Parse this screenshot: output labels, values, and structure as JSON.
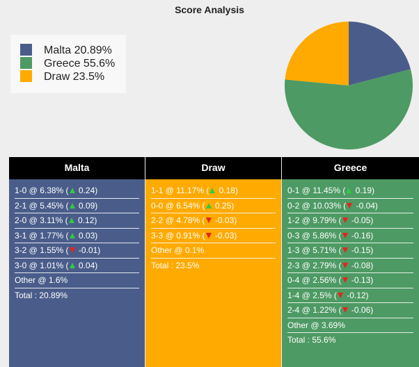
{
  "chart_data": {
    "type": "pie",
    "title": "Score Analysis",
    "legend_placement": "top-left",
    "slices": [
      {
        "label": "Malta 20.89%",
        "value": 20.89,
        "color": "#4a5d8a"
      },
      {
        "label": "Greece 55.6%",
        "value": 55.6,
        "color": "#4e9a64"
      },
      {
        "label": "Draw 23.5%",
        "value": 23.5,
        "color": "#ffaa00"
      }
    ]
  },
  "panels": [
    {
      "header": "Malta",
      "color": "#4a5d8a",
      "rows": [
        {
          "text": "1-0 @ 6.38% (",
          "dir": "up",
          "change": " 0.24)"
        },
        {
          "text": "2-1 @ 5.45% (",
          "dir": "up",
          "change": " 0.09)"
        },
        {
          "text": "2-0 @ 3.11% (",
          "dir": "up",
          "change": " 0.12)"
        },
        {
          "text": "3-1 @ 1.77% (",
          "dir": "up",
          "change": " 0.03)"
        },
        {
          "text": "3-2 @ 1.55% (",
          "dir": "down",
          "change": " -0.01)"
        },
        {
          "text": "3-0 @ 1.01% (",
          "dir": "up",
          "change": " 0.04)"
        },
        {
          "text": "Other @ 1.6%",
          "dir": "",
          "change": ""
        }
      ],
      "total": "Total : 20.89%"
    },
    {
      "header": "Draw",
      "color": "#ffaa00",
      "rows": [
        {
          "text": "1-1 @ 11.17% (",
          "dir": "up",
          "change": " 0.18)"
        },
        {
          "text": "0-0 @ 6.54% (",
          "dir": "up",
          "change": " 0.25)"
        },
        {
          "text": "2-2 @ 4.78% (",
          "dir": "down",
          "change": " -0.03)"
        },
        {
          "text": "3-3 @ 0.91% (",
          "dir": "down",
          "change": " -0.03)"
        },
        {
          "text": "Other @ 0.1%",
          "dir": "",
          "change": ""
        }
      ],
      "total": "Total : 23.5%"
    },
    {
      "header": "Greece",
      "color": "#4e9a64",
      "rows": [
        {
          "text": "0-1 @ 11.45% (",
          "dir": "up",
          "change": " 0.19)"
        },
        {
          "text": "0-2 @ 10.03% (",
          "dir": "down",
          "change": " -0.04)"
        },
        {
          "text": "1-2 @ 9.79% (",
          "dir": "down",
          "change": " -0.05)"
        },
        {
          "text": "0-3 @ 5.86% (",
          "dir": "down",
          "change": " -0.16)"
        },
        {
          "text": "1-3 @ 5.71% (",
          "dir": "down",
          "change": " -0.15)"
        },
        {
          "text": "2-3 @ 2.79% (",
          "dir": "down",
          "change": " -0.08)"
        },
        {
          "text": "0-4 @ 2.56% (",
          "dir": "down",
          "change": " -0.13)"
        },
        {
          "text": "1-4 @ 2.5% (",
          "dir": "down",
          "change": " -0.12)"
        },
        {
          "text": "2-4 @ 1.22% (",
          "dir": "down",
          "change": " -0.06)"
        },
        {
          "text": "Other @ 3.69%",
          "dir": "",
          "change": ""
        }
      ],
      "total": "Total : 55.6%"
    }
  ]
}
